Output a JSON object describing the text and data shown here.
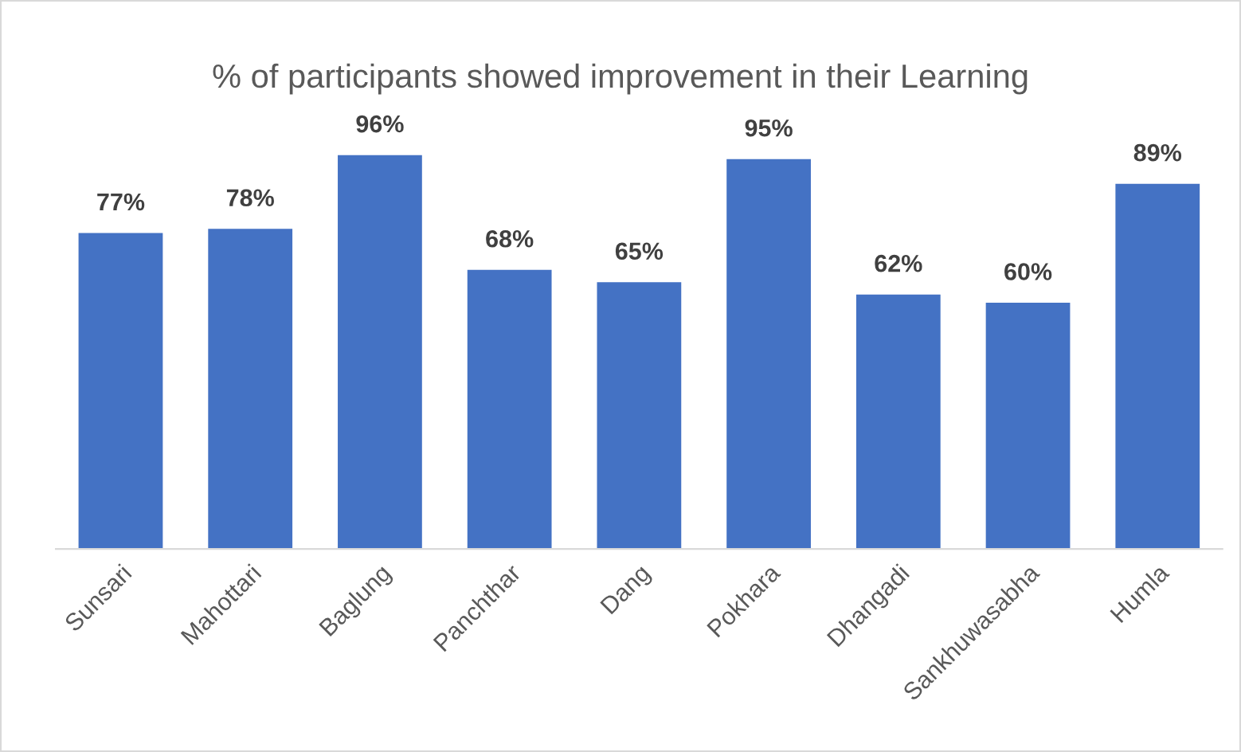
{
  "chart_data": {
    "type": "bar",
    "title": "% of participants showed improvement in their Learning",
    "categories": [
      "Sunsari",
      "Mahottari",
      "Baglung",
      "Panchthar",
      "Dang",
      "Pokhara",
      "Dhangadi",
      "Sankhuwasabha",
      "Humla"
    ],
    "values": [
      77,
      78,
      96,
      68,
      65,
      95,
      62,
      60,
      89
    ],
    "value_labels": [
      "77%",
      "78%",
      "96%",
      "68%",
      "65%",
      "95%",
      "62%",
      "60%",
      "89%"
    ],
    "color": "#4472c4",
    "tick_labels": "x",
    "grid": false
  }
}
